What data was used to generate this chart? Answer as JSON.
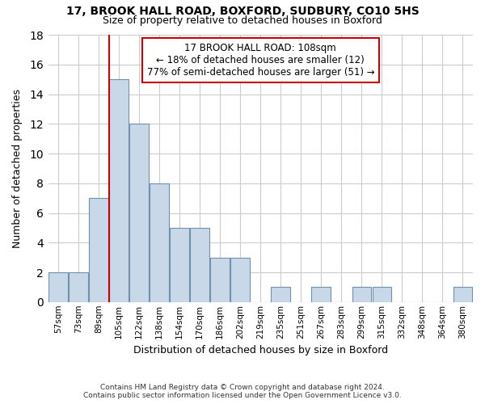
{
  "title1": "17, BROOK HALL ROAD, BOXFORD, SUDBURY, CO10 5HS",
  "title2": "Size of property relative to detached houses in Boxford",
  "xlabel": "Distribution of detached houses by size in Boxford",
  "ylabel": "Number of detached properties",
  "footnote1": "Contains HM Land Registry data © Crown copyright and database right 2024.",
  "footnote2": "Contains public sector information licensed under the Open Government Licence v3.0.",
  "categories": [
    "57sqm",
    "73sqm",
    "89sqm",
    "105sqm",
    "122sqm",
    "138sqm",
    "154sqm",
    "170sqm",
    "186sqm",
    "202sqm",
    "219sqm",
    "235sqm",
    "251sqm",
    "267sqm",
    "283sqm",
    "299sqm",
    "315sqm",
    "332sqm",
    "348sqm",
    "364sqm",
    "380sqm"
  ],
  "values": [
    2,
    2,
    7,
    15,
    12,
    8,
    5,
    5,
    3,
    3,
    0,
    1,
    0,
    1,
    0,
    1,
    1,
    0,
    0,
    0,
    1
  ],
  "bar_color": "#c8d8e8",
  "bar_edge_color": "#7090b0",
  "grid_color": "#cccccc",
  "background_color": "#ffffff",
  "annotation_text": "17 BROOK HALL ROAD: 108sqm\n← 18% of detached houses are smaller (12)\n77% of semi-detached houses are larger (51) →",
  "annotation_box_color": "#ffffff",
  "annotation_border_color": "#cc0000",
  "redline_index": 3,
  "ylim": [
    0,
    18
  ],
  "yticks": [
    0,
    2,
    4,
    6,
    8,
    10,
    12,
    14,
    16,
    18
  ]
}
